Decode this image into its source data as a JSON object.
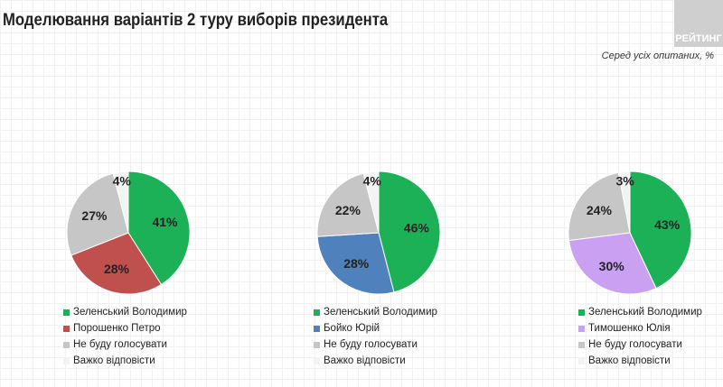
{
  "title": "Моделювання варіантів 2 туру виборів президента",
  "logo": "РЕЙТИНГ",
  "subtitle": "Серед усіх опитаних, %",
  "colors": {
    "zelensky": "#1db157",
    "poroshenko": "#c0504d",
    "boyko": "#4f81bd",
    "tymoshenko": "#c9a0f2",
    "wont_vote": "#c6c6c6",
    "hard_to_say": "#f3f3f3"
  },
  "chart_data": [
    {
      "type": "pie",
      "slices": [
        {
          "name": "Зеленський Володимир",
          "value": 41,
          "label": "41%",
          "color": "#1db157"
        },
        {
          "name": "Порошенко Петро",
          "value": 28,
          "label": "28%",
          "color": "#c0504d"
        },
        {
          "name": "Не буду голосувати",
          "value": 27,
          "label": "27%",
          "color": "#c6c6c6"
        },
        {
          "name": "Важко відповісти",
          "value": 4,
          "label": "4%",
          "color": "#f3f3f3"
        }
      ]
    },
    {
      "type": "pie",
      "slices": [
        {
          "name": "Зеленський Володимир",
          "value": 46,
          "label": "46%",
          "color": "#1db157"
        },
        {
          "name": "Бойко Юрій",
          "value": 28,
          "label": "28%",
          "color": "#4f81bd"
        },
        {
          "name": "Не буду голосувати",
          "value": 22,
          "label": "22%",
          "color": "#c6c6c6"
        },
        {
          "name": "Важко відповісти",
          "value": 4,
          "label": "4%",
          "color": "#f3f3f3"
        }
      ]
    },
    {
      "type": "pie",
      "slices": [
        {
          "name": "Зеленський Володимир",
          "value": 43,
          "label": "43%",
          "color": "#1db157"
        },
        {
          "name": "Тимошенко Юлія",
          "value": 30,
          "label": "30%",
          "color": "#c9a0f2"
        },
        {
          "name": "Не буду голосувати",
          "value": 24,
          "label": "24%",
          "color": "#c6c6c6"
        },
        {
          "name": "Важко відповісти",
          "value": 3,
          "label": "3%",
          "color": "#f3f3f3"
        }
      ]
    }
  ]
}
